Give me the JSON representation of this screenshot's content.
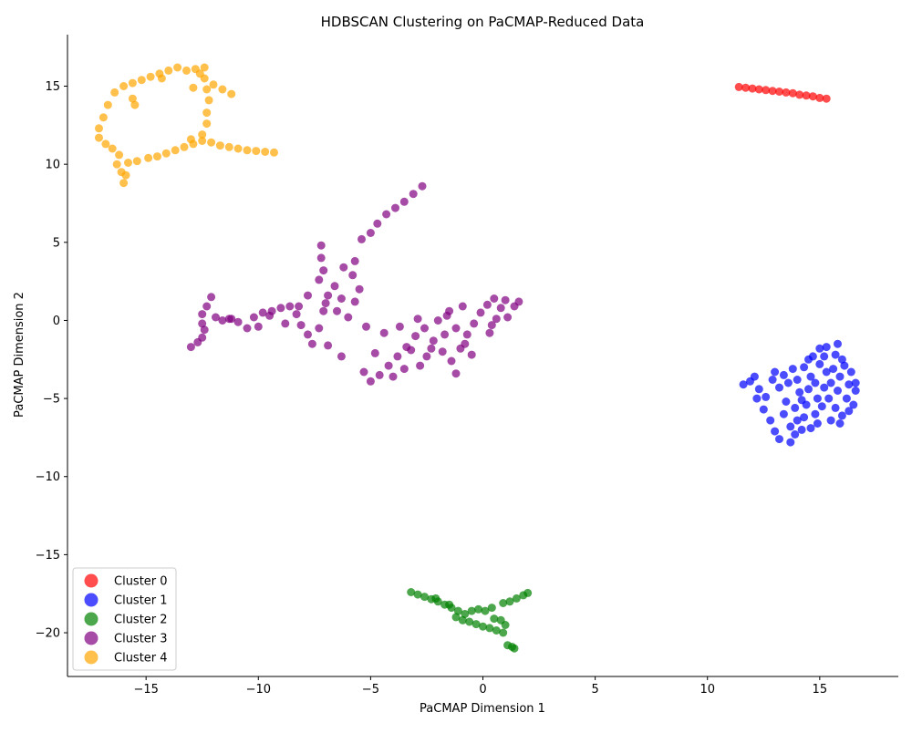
{
  "chart_data": {
    "type": "scatter",
    "title": "HDBSCAN Clustering on PaCMAP-Reduced Data",
    "xlabel": "PaCMAP Dimension 1",
    "ylabel": "PaCMAP Dimension 2",
    "xlim": [
      -18.5,
      18.5
    ],
    "ylim": [
      -22.8,
      18.3
    ],
    "xticks": [
      -15,
      -10,
      -5,
      0,
      5,
      10,
      15
    ],
    "yticks": [
      -20,
      -15,
      -10,
      -5,
      0,
      5,
      10,
      15
    ],
    "grid": false,
    "legend_position": "lower-left",
    "series": [
      {
        "name": "Cluster 0",
        "color": "#ff0000",
        "points": [
          [
            11.4,
            14.95
          ],
          [
            11.7,
            14.9
          ],
          [
            12.0,
            14.85
          ],
          [
            12.3,
            14.8
          ],
          [
            12.6,
            14.75
          ],
          [
            12.9,
            14.7
          ],
          [
            13.2,
            14.65
          ],
          [
            13.5,
            14.6
          ],
          [
            13.8,
            14.55
          ],
          [
            14.1,
            14.45
          ],
          [
            14.4,
            14.4
          ],
          [
            14.7,
            14.35
          ],
          [
            15.0,
            14.25
          ],
          [
            15.3,
            14.2
          ]
        ]
      },
      {
        "name": "Cluster 1",
        "color": "#0000ff",
        "points": [
          [
            11.6,
            -4.1
          ],
          [
            11.9,
            -3.9
          ],
          [
            12.1,
            -3.6
          ],
          [
            12.3,
            -4.4
          ],
          [
            12.2,
            -5.0
          ],
          [
            12.6,
            -4.9
          ],
          [
            12.5,
            -5.7
          ],
          [
            12.8,
            -6.4
          ],
          [
            13.0,
            -7.1
          ],
          [
            13.2,
            -7.6
          ],
          [
            13.0,
            -3.3
          ],
          [
            13.4,
            -3.5
          ],
          [
            13.6,
            -4.0
          ],
          [
            13.5,
            -5.2
          ],
          [
            13.4,
            -6.0
          ],
          [
            13.7,
            -6.8
          ],
          [
            13.7,
            -7.8
          ],
          [
            13.9,
            -7.3
          ],
          [
            14.0,
            -6.4
          ],
          [
            13.9,
            -5.6
          ],
          [
            14.1,
            -4.6
          ],
          [
            14.0,
            -3.8
          ],
          [
            14.3,
            -3.0
          ],
          [
            14.5,
            -2.5
          ],
          [
            14.6,
            -3.6
          ],
          [
            14.5,
            -4.4
          ],
          [
            14.4,
            -5.4
          ],
          [
            14.3,
            -6.2
          ],
          [
            14.6,
            -6.9
          ],
          [
            14.8,
            -6.0
          ],
          [
            14.9,
            -5.0
          ],
          [
            14.8,
            -4.0
          ],
          [
            15.0,
            -2.8
          ],
          [
            15.0,
            -1.8
          ],
          [
            15.2,
            -2.3
          ],
          [
            15.3,
            -3.3
          ],
          [
            15.2,
            -4.3
          ],
          [
            15.1,
            -5.5
          ],
          [
            15.4,
            -5.0
          ],
          [
            15.5,
            -4.0
          ],
          [
            15.6,
            -3.1
          ],
          [
            15.7,
            -2.2
          ],
          [
            15.8,
            -1.5
          ],
          [
            16.0,
            -2.5
          ],
          [
            15.9,
            -3.6
          ],
          [
            15.8,
            -4.5
          ],
          [
            15.7,
            -5.6
          ],
          [
            16.0,
            -6.1
          ],
          [
            16.2,
            -5.0
          ],
          [
            16.3,
            -4.1
          ],
          [
            16.4,
            -3.3
          ],
          [
            16.6,
            -4.0
          ],
          [
            16.6,
            -4.5
          ],
          [
            16.1,
            -2.9
          ],
          [
            15.5,
            -6.4
          ],
          [
            14.2,
            -7.0
          ],
          [
            13.2,
            -4.3
          ],
          [
            12.9,
            -3.8
          ],
          [
            15.9,
            -6.6
          ],
          [
            16.5,
            -5.4
          ],
          [
            14.7,
            -2.3
          ],
          [
            13.8,
            -3.1
          ],
          [
            14.9,
            -6.6
          ],
          [
            16.3,
            -5.8
          ],
          [
            15.3,
            -1.7
          ],
          [
            14.2,
            -5.1
          ]
        ]
      },
      {
        "name": "Cluster 2",
        "color": "#008000",
        "points": [
          [
            -3.2,
            -17.4
          ],
          [
            -2.9,
            -17.55
          ],
          [
            -2.6,
            -17.7
          ],
          [
            -2.3,
            -17.85
          ],
          [
            -2.0,
            -18.0
          ],
          [
            -1.7,
            -18.2
          ],
          [
            -1.4,
            -18.4
          ],
          [
            -1.1,
            -18.6
          ],
          [
            -0.8,
            -18.8
          ],
          [
            -1.2,
            -19.0
          ],
          [
            -0.9,
            -19.2
          ],
          [
            -0.6,
            -19.3
          ],
          [
            -0.3,
            -19.45
          ],
          [
            0.0,
            -19.6
          ],
          [
            0.3,
            -19.7
          ],
          [
            0.6,
            -19.85
          ],
          [
            0.9,
            -20.0
          ],
          [
            -0.5,
            -18.6
          ],
          [
            -0.2,
            -18.5
          ],
          [
            0.1,
            -18.6
          ],
          [
            0.4,
            -18.4
          ],
          [
            0.9,
            -18.1
          ],
          [
            1.2,
            -18.0
          ],
          [
            1.5,
            -17.8
          ],
          [
            1.8,
            -17.6
          ],
          [
            2.0,
            -17.45
          ],
          [
            1.1,
            -20.8
          ],
          [
            1.3,
            -20.9
          ],
          [
            1.4,
            -21.0
          ],
          [
            1.0,
            -19.5
          ],
          [
            0.5,
            -19.1
          ],
          [
            -1.5,
            -18.2
          ],
          [
            -2.1,
            -17.8
          ],
          [
            0.8,
            -19.2
          ]
        ]
      },
      {
        "name": "Cluster 3",
        "color": "#800080",
        "points": [
          [
            -13.0,
            -1.7
          ],
          [
            -12.7,
            -1.4
          ],
          [
            -12.5,
            -1.1
          ],
          [
            -12.4,
            -0.6
          ],
          [
            -12.5,
            -0.2
          ],
          [
            -12.5,
            0.4
          ],
          [
            -12.3,
            0.9
          ],
          [
            -12.1,
            1.5
          ],
          [
            -11.9,
            0.2
          ],
          [
            -11.6,
            0.0
          ],
          [
            -11.3,
            0.1
          ],
          [
            -10.9,
            -0.1
          ],
          [
            -10.5,
            -0.5
          ],
          [
            -10.2,
            0.2
          ],
          [
            -9.8,
            0.5
          ],
          [
            -9.4,
            0.6
          ],
          [
            -9.0,
            0.8
          ],
          [
            -8.6,
            0.9
          ],
          [
            -8.3,
            0.4
          ],
          [
            -8.1,
            -0.3
          ],
          [
            -7.8,
            -0.9
          ],
          [
            -7.6,
            -1.5
          ],
          [
            -7.3,
            -0.5
          ],
          [
            -7.1,
            0.6
          ],
          [
            -6.9,
            1.6
          ],
          [
            -7.3,
            2.6
          ],
          [
            -7.1,
            3.2
          ],
          [
            -7.2,
            4.0
          ],
          [
            -7.2,
            4.8
          ],
          [
            -6.6,
            2.2
          ],
          [
            -6.3,
            1.4
          ],
          [
            -6.0,
            0.2
          ],
          [
            -5.7,
            1.2
          ],
          [
            -5.5,
            2.0
          ],
          [
            -5.8,
            2.9
          ],
          [
            -5.7,
            3.8
          ],
          [
            -5.4,
            5.2
          ],
          [
            -5.0,
            5.6
          ],
          [
            -4.7,
            6.2
          ],
          [
            -4.3,
            6.8
          ],
          [
            -3.9,
            7.2
          ],
          [
            -3.5,
            7.6
          ],
          [
            -3.1,
            8.1
          ],
          [
            -2.7,
            8.6
          ],
          [
            -6.9,
            -1.6
          ],
          [
            -6.3,
            -2.3
          ],
          [
            -5.3,
            -3.3
          ],
          [
            -5.0,
            -3.9
          ],
          [
            -4.6,
            -3.5
          ],
          [
            -4.2,
            -2.9
          ],
          [
            -3.8,
            -2.3
          ],
          [
            -3.4,
            -1.7
          ],
          [
            -3.0,
            -1.0
          ],
          [
            -2.6,
            -0.5
          ],
          [
            -2.2,
            -1.3
          ],
          [
            -1.8,
            -2.0
          ],
          [
            -1.4,
            -2.6
          ],
          [
            -1.0,
            -1.8
          ],
          [
            -0.7,
            -0.9
          ],
          [
            -0.4,
            -0.2
          ],
          [
            -0.1,
            0.5
          ],
          [
            0.2,
            1.0
          ],
          [
            0.5,
            1.4
          ],
          [
            0.8,
            0.8
          ],
          [
            1.1,
            0.2
          ],
          [
            1.4,
            0.9
          ],
          [
            1.6,
            1.2
          ],
          [
            -2.0,
            0.0
          ],
          [
            -1.5,
            0.6
          ],
          [
            -1.2,
            -0.5
          ],
          [
            -2.8,
            -2.9
          ],
          [
            -3.5,
            -3.1
          ],
          [
            -4.4,
            -0.8
          ],
          [
            -4.8,
            -2.1
          ],
          [
            -1.2,
            -3.4
          ],
          [
            0.3,
            -0.8
          ],
          [
            -0.5,
            -2.2
          ],
          [
            -1.7,
            -0.9
          ],
          [
            -2.5,
            -2.3
          ],
          [
            -3.7,
            -0.4
          ],
          [
            -5.2,
            -0.4
          ],
          [
            -8.8,
            -0.2
          ],
          [
            -9.5,
            0.3
          ],
          [
            -7.8,
            1.6
          ],
          [
            -6.5,
            0.6
          ],
          [
            -0.9,
            0.9
          ],
          [
            0.6,
            0.1
          ],
          [
            -1.6,
            0.3
          ],
          [
            -3.2,
            -1.9
          ],
          [
            -4.0,
            -3.6
          ],
          [
            1.0,
            1.3
          ],
          [
            0.4,
            -0.3
          ],
          [
            -2.3,
            -1.8
          ],
          [
            -0.8,
            -1.5
          ],
          [
            -6.2,
            3.4
          ],
          [
            -7.0,
            1.1
          ],
          [
            -8.2,
            0.9
          ],
          [
            -10.0,
            -0.4
          ],
          [
            -11.2,
            0.1
          ],
          [
            -2.9,
            0.1
          ]
        ]
      },
      {
        "name": "Cluster 4",
        "color": "#ffa500",
        "points": [
          [
            -16.0,
            8.8
          ],
          [
            -16.1,
            9.5
          ],
          [
            -15.8,
            10.1
          ],
          [
            -15.4,
            10.2
          ],
          [
            -14.9,
            10.4
          ],
          [
            -14.5,
            10.5
          ],
          [
            -14.1,
            10.7
          ],
          [
            -13.7,
            10.9
          ],
          [
            -13.3,
            11.1
          ],
          [
            -12.9,
            11.3
          ],
          [
            -12.5,
            11.5
          ],
          [
            -12.1,
            11.4
          ],
          [
            -11.7,
            11.2
          ],
          [
            -11.3,
            11.1
          ],
          [
            -10.9,
            11.0
          ],
          [
            -10.5,
            10.9
          ],
          [
            -10.1,
            10.85
          ],
          [
            -9.7,
            10.8
          ],
          [
            -9.3,
            10.75
          ],
          [
            -12.5,
            11.9
          ],
          [
            -12.3,
            12.6
          ],
          [
            -12.3,
            13.3
          ],
          [
            -12.2,
            14.1
          ],
          [
            -12.3,
            14.8
          ],
          [
            -12.4,
            15.5
          ],
          [
            -12.4,
            16.2
          ],
          [
            -12.0,
            15.1
          ],
          [
            -11.6,
            14.8
          ],
          [
            -11.2,
            14.5
          ],
          [
            -12.8,
            16.1
          ],
          [
            -13.2,
            16.0
          ],
          [
            -13.6,
            16.2
          ],
          [
            -14.0,
            16.0
          ],
          [
            -14.4,
            15.8
          ],
          [
            -14.8,
            15.6
          ],
          [
            -15.2,
            15.4
          ],
          [
            -15.6,
            15.2
          ],
          [
            -16.0,
            15.0
          ],
          [
            -16.4,
            14.6
          ],
          [
            -16.7,
            13.8
          ],
          [
            -16.9,
            13.0
          ],
          [
            -17.1,
            12.3
          ],
          [
            -17.1,
            11.7
          ],
          [
            -16.8,
            11.3
          ],
          [
            -16.5,
            11.0
          ],
          [
            -16.2,
            10.6
          ],
          [
            -15.6,
            14.2
          ],
          [
            -15.5,
            13.8
          ],
          [
            -14.3,
            15.5
          ],
          [
            -12.9,
            14.9
          ],
          [
            -16.3,
            10.0
          ],
          [
            -15.9,
            9.3
          ],
          [
            -13.0,
            11.6
          ],
          [
            -12.6,
            15.8
          ]
        ]
      }
    ]
  }
}
